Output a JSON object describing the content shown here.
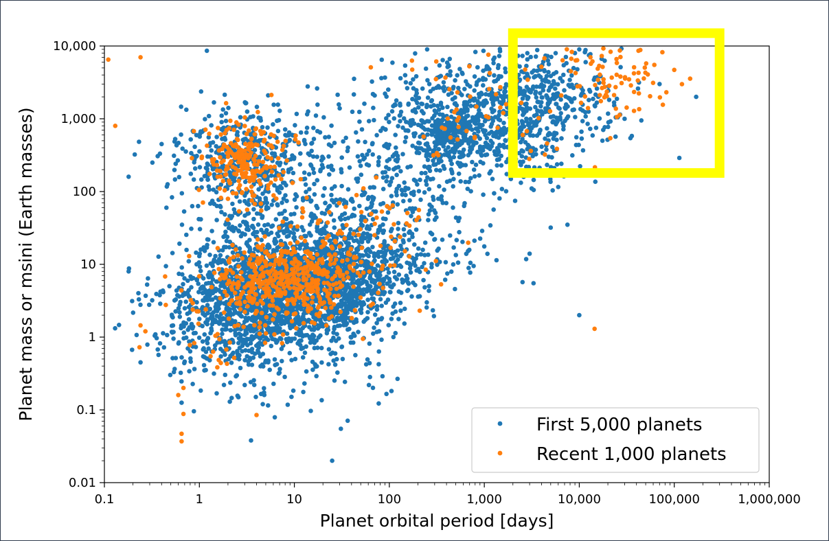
{
  "chart_data": {
    "type": "scatter",
    "xlabel": "Planet orbital period [days]",
    "ylabel": "Planet mass or msini (Earth masses)",
    "xscale": "log",
    "yscale": "log",
    "xlim": [
      0.1,
      1000000
    ],
    "ylim": [
      0.01,
      10000
    ],
    "x_ticks": [
      0.1,
      1,
      10,
      100,
      1000,
      10000,
      100000,
      1000000
    ],
    "x_tick_labels": [
      "0.1",
      "1",
      "10",
      "100",
      "1,000",
      "10,000",
      "100,000",
      "1,000,000"
    ],
    "y_ticks": [
      0.01,
      0.1,
      1,
      10,
      100,
      1000,
      10000
    ],
    "y_tick_labels": [
      "0.01",
      "0.1",
      "1",
      "10",
      "100",
      "1,000",
      "10,000"
    ],
    "grid": false,
    "legend_position": "bottom-right",
    "series": [
      {
        "name": "First 5,000 planets",
        "color": "#1f77b4",
        "clusters": [
          {
            "cx": 10,
            "cy": 4,
            "sx": 0.5,
            "sy": 0.35,
            "n": 1100
          },
          {
            "cx": 30,
            "cy": 8,
            "sx": 0.45,
            "sy": 0.3,
            "n": 700
          },
          {
            "cx": 3,
            "cy": 3,
            "sx": 0.45,
            "sy": 0.35,
            "n": 500
          },
          {
            "cx": 3,
            "cy": 300,
            "sx": 0.35,
            "sy": 0.35,
            "n": 450
          },
          {
            "cx": 1000,
            "cy": 1000,
            "sx": 0.55,
            "sy": 0.4,
            "n": 800
          },
          {
            "cx": 450,
            "cy": 600,
            "sx": 0.15,
            "sy": 0.15,
            "n": 150
          },
          {
            "cx": 100,
            "cy": 80,
            "sx": 0.6,
            "sy": 0.55,
            "n": 400
          },
          {
            "cx": 5,
            "cy": 25,
            "sx": 0.4,
            "sy": 0.35,
            "n": 250
          },
          {
            "cx": 5000,
            "cy": 2500,
            "sx": 0.4,
            "sy": 0.35,
            "n": 200
          },
          {
            "cx": 2,
            "cy": 0.8,
            "sx": 0.4,
            "sy": 0.4,
            "n": 200
          },
          {
            "cx": 15,
            "cy": 0.5,
            "sx": 0.5,
            "sy": 0.4,
            "n": 100
          }
        ],
        "points": [
          {
            "x": 0.18,
            "y": 160
          },
          {
            "x": 0.4,
            "y": 450
          },
          {
            "x": 0.32,
            "y": 250
          },
          {
            "x": 0.18,
            "y": 8
          },
          {
            "x": 0.24,
            "y": 0.45
          },
          {
            "x": 0.45,
            "y": 60
          },
          {
            "x": 25,
            "y": 0.02
          },
          {
            "x": 3.5,
            "y": 0.038
          },
          {
            "x": 10000,
            "y": 2
          },
          {
            "x": 3300,
            "y": 5.5
          },
          {
            "x": 170000,
            "y": 2000
          },
          {
            "x": 70000,
            "y": 3000
          },
          {
            "x": 45000,
            "y": 950
          },
          {
            "x": 30000,
            "y": 1000
          },
          {
            "x": 7500,
            "y": 35
          },
          {
            "x": 5000,
            "y": 32
          },
          {
            "x": 3000,
            "y": 14
          },
          {
            "x": 10000,
            "y": 9000
          },
          {
            "x": 1.2,
            "y": 8600
          },
          {
            "x": 250,
            "y": 9000
          },
          {
            "x": 9000,
            "y": 8000
          }
        ]
      },
      {
        "name": "Recent 1,000 planets",
        "color": "#ff7f0e",
        "clusters": [
          {
            "cx": 8,
            "cy": 6,
            "sx": 0.35,
            "sy": 0.25,
            "n": 450
          },
          {
            "cx": 3,
            "cy": 250,
            "sx": 0.22,
            "sy": 0.3,
            "n": 220
          },
          {
            "cx": 25,
            "cy": 15,
            "sx": 0.5,
            "sy": 0.45,
            "n": 120
          },
          {
            "cx": 25000,
            "cy": 3500,
            "sx": 0.3,
            "sy": 0.25,
            "n": 80
          },
          {
            "cx": 1000,
            "cy": 1200,
            "sx": 0.55,
            "sy": 0.45,
            "n": 60
          },
          {
            "cx": 2,
            "cy": 1.5,
            "sx": 0.35,
            "sy": 0.4,
            "n": 50
          }
        ],
        "points": [
          {
            "x": 0.11,
            "y": 6500
          },
          {
            "x": 0.13,
            "y": 800
          },
          {
            "x": 0.24,
            "y": 7000
          },
          {
            "x": 0.65,
            "y": 0.037
          },
          {
            "x": 0.65,
            "y": 0.047
          },
          {
            "x": 0.68,
            "y": 0.088
          },
          {
            "x": 14500,
            "y": 1.3
          },
          {
            "x": 100000,
            "y": 4700
          },
          {
            "x": 75000,
            "y": 8200
          },
          {
            "x": 42000,
            "y": 8600
          },
          {
            "x": 4,
            "y": 0.085
          },
          {
            "x": 0.24,
            "y": 1.45
          },
          {
            "x": 0.27,
            "y": 1.2
          },
          {
            "x": 0.6,
            "y": 0.16
          },
          {
            "x": 0.68,
            "y": 0.2
          }
        ]
      }
    ],
    "highlight_box": {
      "x0": 2000,
      "x1": 300000,
      "y0": 180,
      "y1": 15000,
      "color": "#ffff00"
    }
  }
}
